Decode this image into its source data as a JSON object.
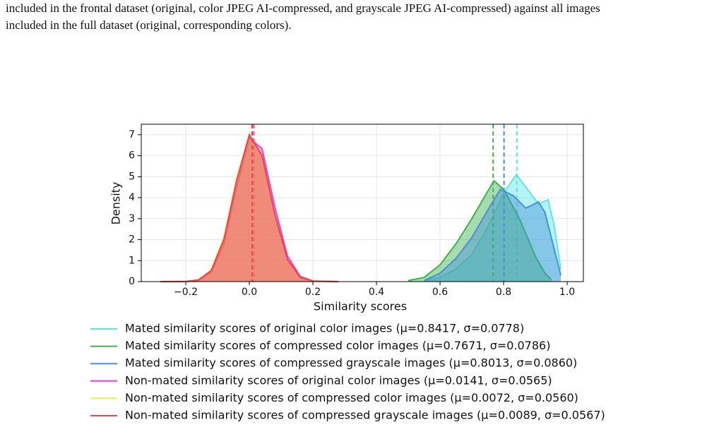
{
  "paragraph": {
    "lines": [
      "included in the frontal dataset (original, color JPEG AI-compressed, and grayscale JPEG AI-compressed) against all images",
      "included in the full dataset (original, corresponding colors)."
    ]
  },
  "chart_data": {
    "type": "density",
    "xlabel": "Similarity scores",
    "ylabel": "Density",
    "xlim": [
      -0.34,
      1.051
    ],
    "ylim": [
      0,
      7.5
    ],
    "xticks": [
      {
        "value": -0.2,
        "label": "−0.2"
      },
      {
        "value": 0,
        "label": "0.0"
      },
      0.2,
      0.4,
      0.6,
      0.8,
      {
        "value": 1,
        "label": "1.0"
      }
    ],
    "yticks": [
      0,
      1,
      2,
      3,
      4,
      5,
      6,
      7
    ],
    "grid": true,
    "series": [
      {
        "name": "Mated similarity scores of original color images (μ=0.8417, σ=0.0778)",
        "color": "#5ce6e6",
        "mean": 0.8417,
        "x": [
          0.55,
          0.6,
          0.65,
          0.7,
          0.75,
          0.8,
          0.84,
          0.88,
          0.91,
          0.94,
          0.96,
          0.98
        ],
        "values": [
          0.05,
          0.2,
          0.6,
          1.3,
          2.6,
          4.2,
          5.1,
          4.3,
          3.7,
          3.9,
          2.6,
          0.6
        ]
      },
      {
        "name": "Mated similarity scores of compressed color images (μ=0.7671, σ=0.0786)",
        "color": "#3cb44b",
        "mean": 0.7671,
        "x": [
          0.5,
          0.55,
          0.6,
          0.65,
          0.7,
          0.75,
          0.77,
          0.8,
          0.85,
          0.9,
          0.93,
          0.95
        ],
        "values": [
          0.05,
          0.2,
          0.8,
          1.8,
          3.0,
          4.3,
          4.8,
          4.4,
          3.0,
          1.2,
          0.4,
          0.1
        ]
      },
      {
        "name": "Mated similarity scores of compressed grayscale images (μ=0.8013, σ=0.0860)",
        "color": "#4a90d9",
        "mean": 0.8013,
        "x": [
          0.55,
          0.6,
          0.65,
          0.7,
          0.75,
          0.79,
          0.83,
          0.87,
          0.91,
          0.93,
          0.96,
          0.98
        ],
        "values": [
          0.05,
          0.4,
          1.1,
          2.1,
          3.4,
          4.4,
          4.1,
          3.5,
          3.8,
          3.3,
          1.5,
          0.3
        ]
      },
      {
        "name": "Non-mated similarity scores of original color images (μ=0.0141, σ=0.0565)",
        "color": "#f03cd8",
        "mean": 0.0141,
        "x": [
          -0.28,
          -0.2,
          -0.16,
          -0.12,
          -0.08,
          -0.04,
          0,
          0.04,
          0.08,
          0.12,
          0.16,
          0.2,
          0.28
        ],
        "values": [
          0,
          0.005,
          0.06,
          0.43,
          1.78,
          4.46,
          6.84,
          6.34,
          3.57,
          1.22,
          0.25,
          0.03,
          0
        ]
      },
      {
        "name": "Non-mated similarity scores of compressed color images (μ=0.0072, σ=0.0560)",
        "color": "#f0f03c",
        "mean": 0.0072,
        "x": [
          -0.28,
          -0.2,
          -0.16,
          -0.12,
          -0.08,
          -0.04,
          0,
          0.04,
          0.08,
          0.12,
          0.16,
          0.2,
          0.28
        ],
        "values": [
          0,
          0.01,
          0.09,
          0.56,
          2.1,
          4.9,
          7.0,
          5.9,
          3.1,
          0.98,
          0.18,
          0.02,
          0
        ]
      },
      {
        "name": "Non-mated similarity scores of compressed grayscale images (μ=0.0089, σ=0.0567)",
        "color": "#e8454e",
        "mean": 0.0089,
        "x": [
          -0.28,
          -0.2,
          -0.16,
          -0.12,
          -0.08,
          -0.04,
          0,
          0.04,
          0.08,
          0.12,
          0.16,
          0.2,
          0.28
        ],
        "values": [
          0,
          0.008,
          0.08,
          0.52,
          2.0,
          4.8,
          7.0,
          6.0,
          3.2,
          1.05,
          0.2,
          0.02,
          0
        ]
      }
    ]
  }
}
